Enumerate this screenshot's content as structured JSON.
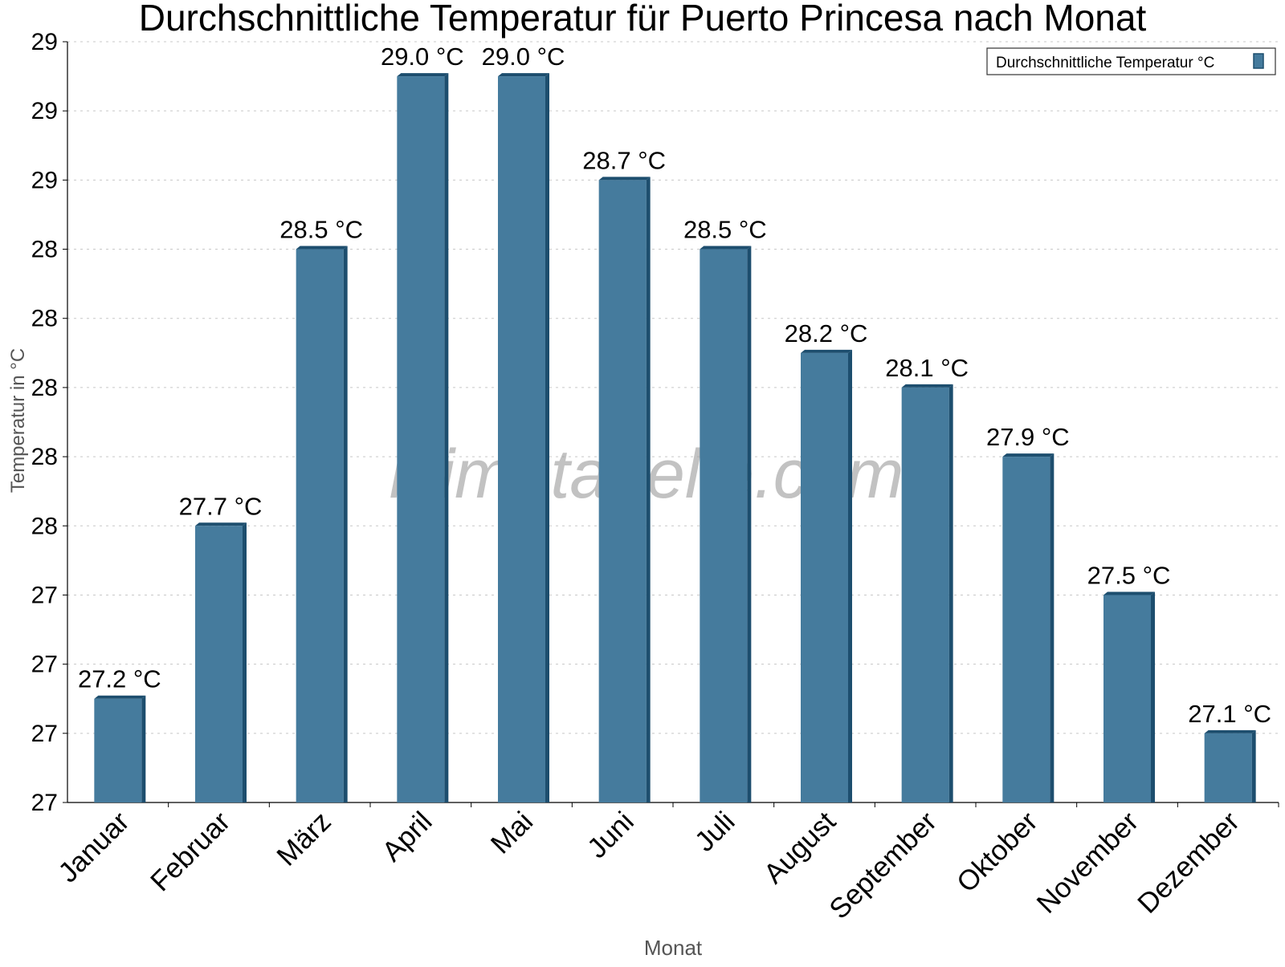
{
  "chart_data": {
    "type": "bar",
    "title": "Durchschnittliche Temperatur für Puerto Princesa nach Monat",
    "xlabel": "Monat",
    "ylabel": "Temperatur in °C",
    "categories": [
      "Januar",
      "Februar",
      "März",
      "April",
      "Mai",
      "Juni",
      "Juli",
      "August",
      "September",
      "Oktober",
      "November",
      "Dezember"
    ],
    "series": [
      {
        "name": "Durchschnittliche Temperatur °C",
        "values": [
          27.2,
          27.7,
          28.5,
          29.0,
          29.0,
          28.7,
          28.5,
          28.2,
          28.1,
          27.9,
          27.5,
          27.1
        ],
        "labels": [
          "27.2 °C",
          "27.7 °C",
          "28.5 °C",
          "29.0 °C",
          "29.0 °C",
          "28.7 °C",
          "28.5 °C",
          "28.2 °C",
          "28.1 °C",
          "27.9 °C",
          "27.5 °C",
          "27.1 °C"
        ]
      }
    ],
    "ylim": [
      26.9,
      29.1
    ],
    "yticks": [
      26.9,
      27.1,
      27.3,
      27.5,
      27.7,
      27.9,
      28.1,
      28.3,
      28.5,
      28.7,
      28.9,
      29.1
    ],
    "ytick_labels": [
      "27",
      "27",
      "27",
      "27",
      "28",
      "28",
      "28",
      "28",
      "28",
      "29",
      "29",
      "29"
    ],
    "grid": true,
    "legend_position": "top-right",
    "bar_color": "#457b9d",
    "bar_edge_color": "#1d4e6e",
    "watermark": "klimatabelle.com"
  }
}
